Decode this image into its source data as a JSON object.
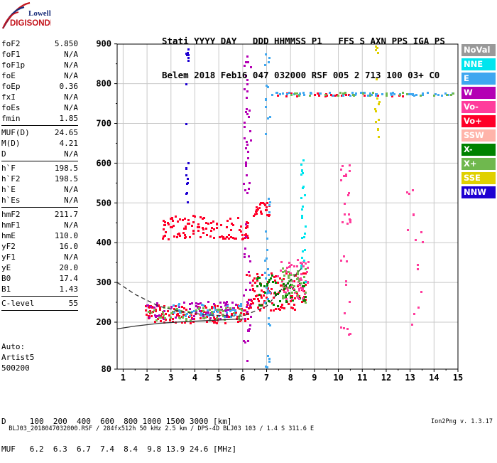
{
  "logo": {
    "line1": "Lowell",
    "line2": "DIGISONDE"
  },
  "header": {
    "row1": "Stati YYYY DAY   DDD HHMMSS P1   FFS S AXN PPS IGA PS",
    "row2": "Belem 2018 Feb16 047 032000 RSF 005 2 713 100 03+ C0"
  },
  "params": [
    {
      "label": "foF2",
      "value": "5.850"
    },
    {
      "label": "foF1",
      "value": "N/A"
    },
    {
      "label": "foF1p",
      "value": "N/A"
    },
    {
      "label": "foE",
      "value": "N/A"
    },
    {
      "label": "foEp",
      "value": "0.36"
    },
    {
      "label": "fxI",
      "value": "N/A"
    },
    {
      "label": "foEs",
      "value": "N/A"
    },
    {
      "label": "fmin",
      "value": "1.85"
    },
    {
      "sep": true
    },
    {
      "label": "MUF(D)",
      "value": "24.65"
    },
    {
      "label": "M(D)",
      "value": "4.21"
    },
    {
      "label": "D",
      "value": "N/A"
    },
    {
      "sep": true
    },
    {
      "label": "h`F",
      "value": "198.5"
    },
    {
      "label": "h`F2",
      "value": "198.5"
    },
    {
      "label": "h`E",
      "value": "N/A"
    },
    {
      "label": "h`Es",
      "value": "N/A"
    },
    {
      "sep": true
    },
    {
      "label": "hmF2",
      "value": "211.7"
    },
    {
      "label": "hmF1",
      "value": "N/A"
    },
    {
      "label": "hmE",
      "value": "110.0"
    },
    {
      "label": "yF2",
      "value": "16.0"
    },
    {
      "label": "yF1",
      "value": "N/A"
    },
    {
      "label": "yE",
      "value": "20.0"
    },
    {
      "label": "B0",
      "value": "17.4"
    },
    {
      "label": "B1",
      "value": "1.43"
    },
    {
      "sep": true
    },
    {
      "label": "C-level",
      "value": "55"
    },
    {
      "sep": true
    }
  ],
  "auto": {
    "line1": "Auto:",
    "line2": "Artist5",
    "line3": "500200"
  },
  "bottom_table": {
    "row1": "D     100  200  400  600  800 1000 1500 3000 [km]",
    "row2": "MUF   6.2  6.3  6.7  7.4  8.4  9.8 13.9 24.6 [MHz]"
  },
  "footer": {
    "left": "BLJ03_2018047032000.RSF / 284fx512h 50 kHz 2.5 km / DPS-4D BLJ03 103 / 1.4 S 311.6 E",
    "right": "Ion2Png v. 1.3.17"
  },
  "legend": [
    {
      "label": "NoVal",
      "color": "#999999"
    },
    {
      "label": "NNE",
      "color": "#00e5ee"
    },
    {
      "label": "E",
      "color": "#3fa7f0"
    },
    {
      "label": "W",
      "color": "#b400b4"
    },
    {
      "label": "Vo-",
      "color": "#ff3c9c"
    },
    {
      "label": "Vo+",
      "color": "#ff0028"
    },
    {
      "label": "SSW",
      "color": "#ffb4aa"
    },
    {
      "label": "X-",
      "color": "#008200"
    },
    {
      "label": "X+",
      "color": "#6fb84e"
    },
    {
      "label": "SSE",
      "color": "#e0d000"
    },
    {
      "label": "NNW",
      "color": "#1e00d2"
    }
  ],
  "chart_data": {
    "type": "scatter",
    "title": "",
    "xlabel": "",
    "ylabel": "",
    "xlim": [
      0.75,
      15
    ],
    "ylim": [
      80,
      900
    ],
    "xticks": [
      1,
      2,
      3,
      4,
      5,
      6,
      7,
      8,
      9,
      10,
      11,
      12,
      13,
      14,
      15
    ],
    "yticks": [
      80,
      200,
      300,
      400,
      500,
      600,
      700,
      800,
      900
    ],
    "grid": true,
    "traces": [
      {
        "name": "",
        "style": "solid",
        "points": [
          [
            0.75,
            183
          ],
          [
            1.5,
            190
          ],
          [
            2.5,
            197
          ],
          [
            3.5,
            201
          ],
          [
            4.5,
            204
          ],
          [
            5.5,
            207
          ],
          [
            6.05,
            208
          ]
        ]
      },
      {
        "name": "",
        "style": "dashed",
        "points": [
          [
            0.75,
            300
          ],
          [
            1.5,
            270
          ],
          [
            2.5,
            240
          ],
          [
            3.5,
            226
          ],
          [
            4.5,
            218
          ],
          [
            5.5,
            216
          ],
          [
            6.0,
            215
          ],
          [
            7.0,
            240
          ],
          [
            7.5,
            275
          ],
          [
            8.0,
            305
          ],
          [
            8.3,
            325
          ],
          [
            8.45,
            335
          ]
        ]
      }
    ],
    "echo_clusters": [
      {
        "direction": "Vo+",
        "x": [
          1.8,
          6.2
        ],
        "y": [
          200,
          245
        ],
        "density": 140
      },
      {
        "direction": "W",
        "x": [
          1.9,
          6.2
        ],
        "y": [
          210,
          255
        ],
        "density": 70
      },
      {
        "direction": "X+",
        "x": [
          2.0,
          6.0
        ],
        "y": [
          205,
          240
        ],
        "density": 60
      },
      {
        "direction": "E",
        "x": [
          3.0,
          6.0
        ],
        "y": [
          215,
          250
        ],
        "density": 40
      },
      {
        "direction": "Vo+",
        "x": [
          6.1,
          8.6
        ],
        "y": [
          230,
          330
        ],
        "density": 110
      },
      {
        "direction": "X-",
        "x": [
          6.5,
          8.6
        ],
        "y": [
          240,
          320
        ],
        "density": 60
      },
      {
        "direction": "Vo-",
        "x": [
          7.4,
          8.7
        ],
        "y": [
          260,
          360
        ],
        "density": 60
      },
      {
        "direction": "X+",
        "x": [
          7.6,
          8.6
        ],
        "y": [
          250,
          340
        ],
        "density": 40
      },
      {
        "direction": "Vo+",
        "x": [
          2.6,
          6.2
        ],
        "y": [
          410,
          470
        ],
        "density": 110
      },
      {
        "direction": "Vo+",
        "x": [
          6.4,
          7.1
        ],
        "y": [
          470,
          505
        ],
        "density": 25
      },
      {
        "direction": "Vo+",
        "x": [
          7.3,
          12.7
        ],
        "y": [
          770,
          780
        ],
        "density": 30
      },
      {
        "direction": "E",
        "x": [
          7.0,
          14.9
        ],
        "y": [
          772,
          780
        ],
        "density": 60
      },
      {
        "direction": "X+",
        "x": [
          8.0,
          14.9
        ],
        "y": [
          772,
          780
        ],
        "density": 25
      },
      {
        "direction": "W",
        "x": [
          6.0,
          6.3
        ],
        "y": [
          80,
          900
        ],
        "density": 60
      },
      {
        "direction": "NNW",
        "x": [
          3.6,
          3.7
        ],
        "y": [
          500,
          900
        ],
        "density": 20
      },
      {
        "direction": "E",
        "x": [
          6.9,
          7.1
        ],
        "y": [
          80,
          900
        ],
        "density": 40
      },
      {
        "direction": "NNE",
        "x": [
          8.4,
          8.6
        ],
        "y": [
          300,
          620
        ],
        "density": 25
      },
      {
        "direction": "Vo-",
        "x": [
          10.0,
          10.5
        ],
        "y": [
          160,
          600
        ],
        "density": 30
      },
      {
        "direction": "Vo-",
        "x": [
          12.8,
          13.6
        ],
        "y": [
          180,
          540
        ],
        "density": 15
      },
      {
        "direction": "SSE",
        "x": [
          11.5,
          11.7
        ],
        "y": [
          600,
          900
        ],
        "density": 15
      }
    ]
  }
}
